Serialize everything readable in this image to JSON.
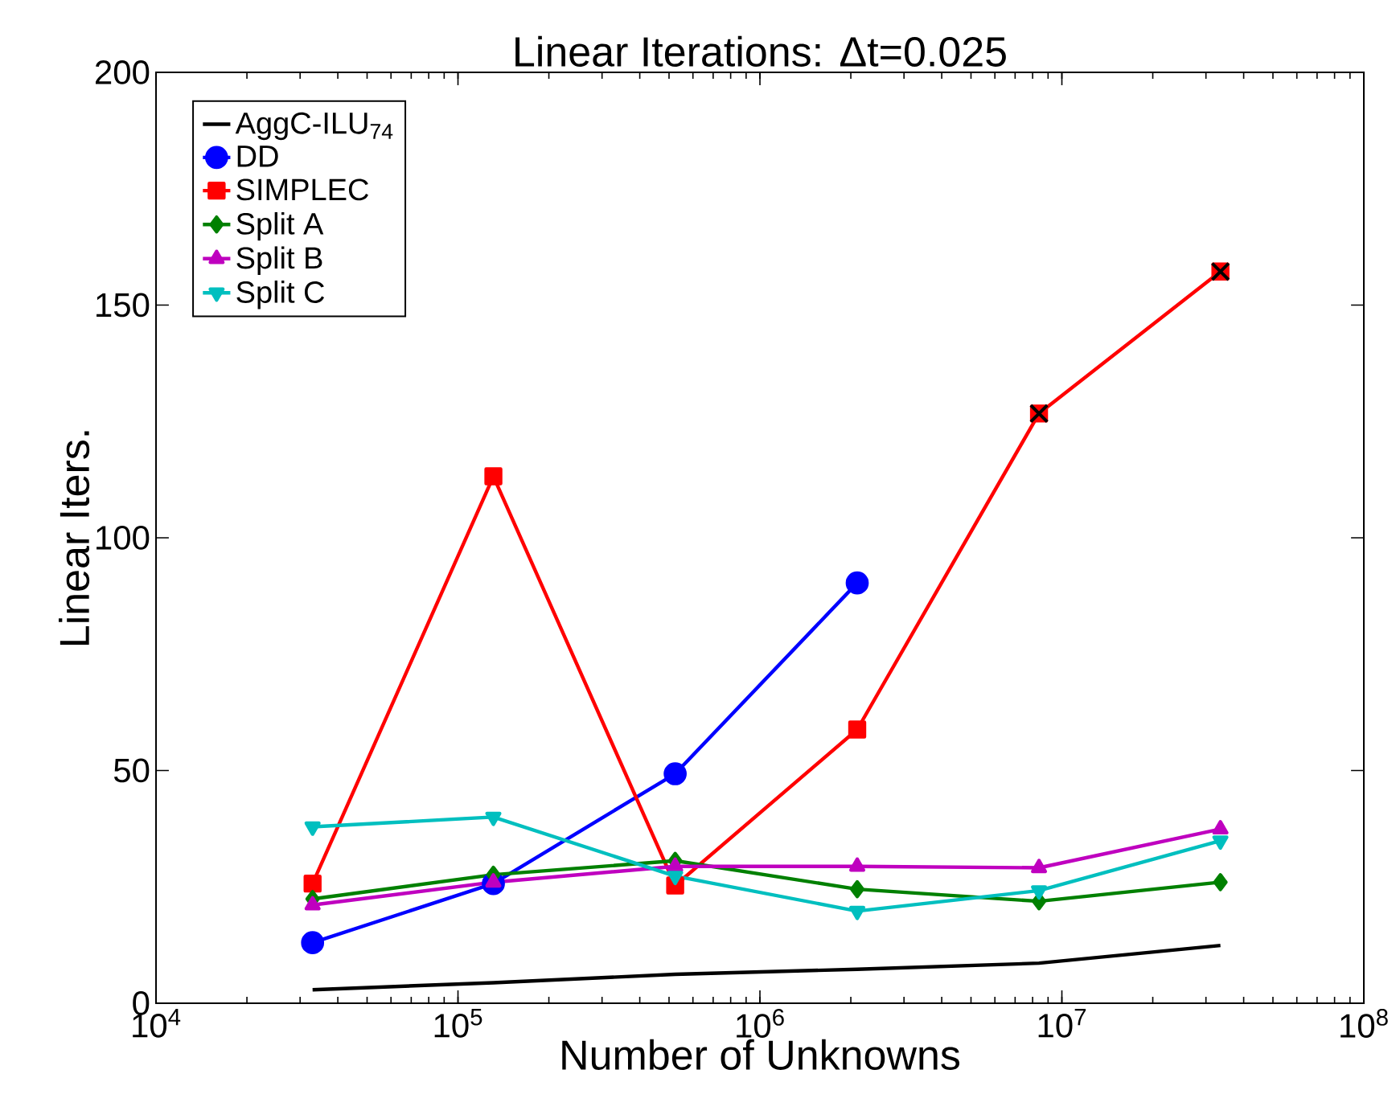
{
  "chart_data": {
    "type": "line",
    "title": "Linear Iterations: Δt=0.025",
    "xlabel": "Number of Unknowns",
    "ylabel": "Linear Iters.",
    "log": "x",
    "xlim": [
      10000,
      100000000
    ],
    "xticks": [
      {
        "value": 10000,
        "label": "10$^{4}$"
      },
      {
        "value": 100000,
        "label": "10$^{5}$"
      },
      {
        "value": 1000000,
        "label": "10$^{6}$"
      },
      {
        "value": 10000000,
        "label": "10$^{7}$"
      },
      {
        "value": 100000000,
        "label": "10$^{8}$"
      }
    ],
    "ylim": [
      0,
      200
    ],
    "yticks": [
      0,
      50,
      100,
      150,
      200
    ],
    "grid": false,
    "legend": "top left",
    "x": [
      33000,
      131000,
      524000,
      2100000,
      8400000,
      33500000
    ],
    "series": [
      {
        "name": "AggC-ILU$_{74}$",
        "color": "#000000",
        "marker": "none",
        "values": [
          2.9,
          4.4,
          6.2,
          7.3,
          8.6,
          12.4
        ]
      },
      {
        "name": "DD",
        "color": "#0000ff",
        "marker": "circle",
        "values": [
          13.0,
          25.7,
          49.3,
          90.3,
          null,
          null
        ]
      },
      {
        "name": "SIMPLEC",
        "color": "#ff0000",
        "marker": "square",
        "values": [
          25.7,
          113.2,
          25.3,
          58.8,
          126.7,
          157.2
        ]
      },
      {
        "name": "Split A",
        "color": "#008000",
        "marker": "diamond",
        "values": [
          22.4,
          27.6,
          30.6,
          24.5,
          21.9,
          26.0
        ]
      },
      {
        "name": "Split B",
        "color": "#bf00bf",
        "marker": "triangle",
        "values": [
          21.1,
          26.0,
          29.4,
          29.4,
          29.1,
          37.4
        ]
      },
      {
        "name": "Split C",
        "color": "#00bfbf",
        "marker": "triangle down",
        "values": [
          37.9,
          40.0,
          27.3,
          19.8,
          24.2,
          34.9
        ]
      },
      {
        "type": "scatter",
        "color": "#000000",
        "marker": "cross",
        "x": [
          8400000,
          33500000
        ],
        "values": [
          126.7,
          157.2
        ]
      }
    ]
  }
}
